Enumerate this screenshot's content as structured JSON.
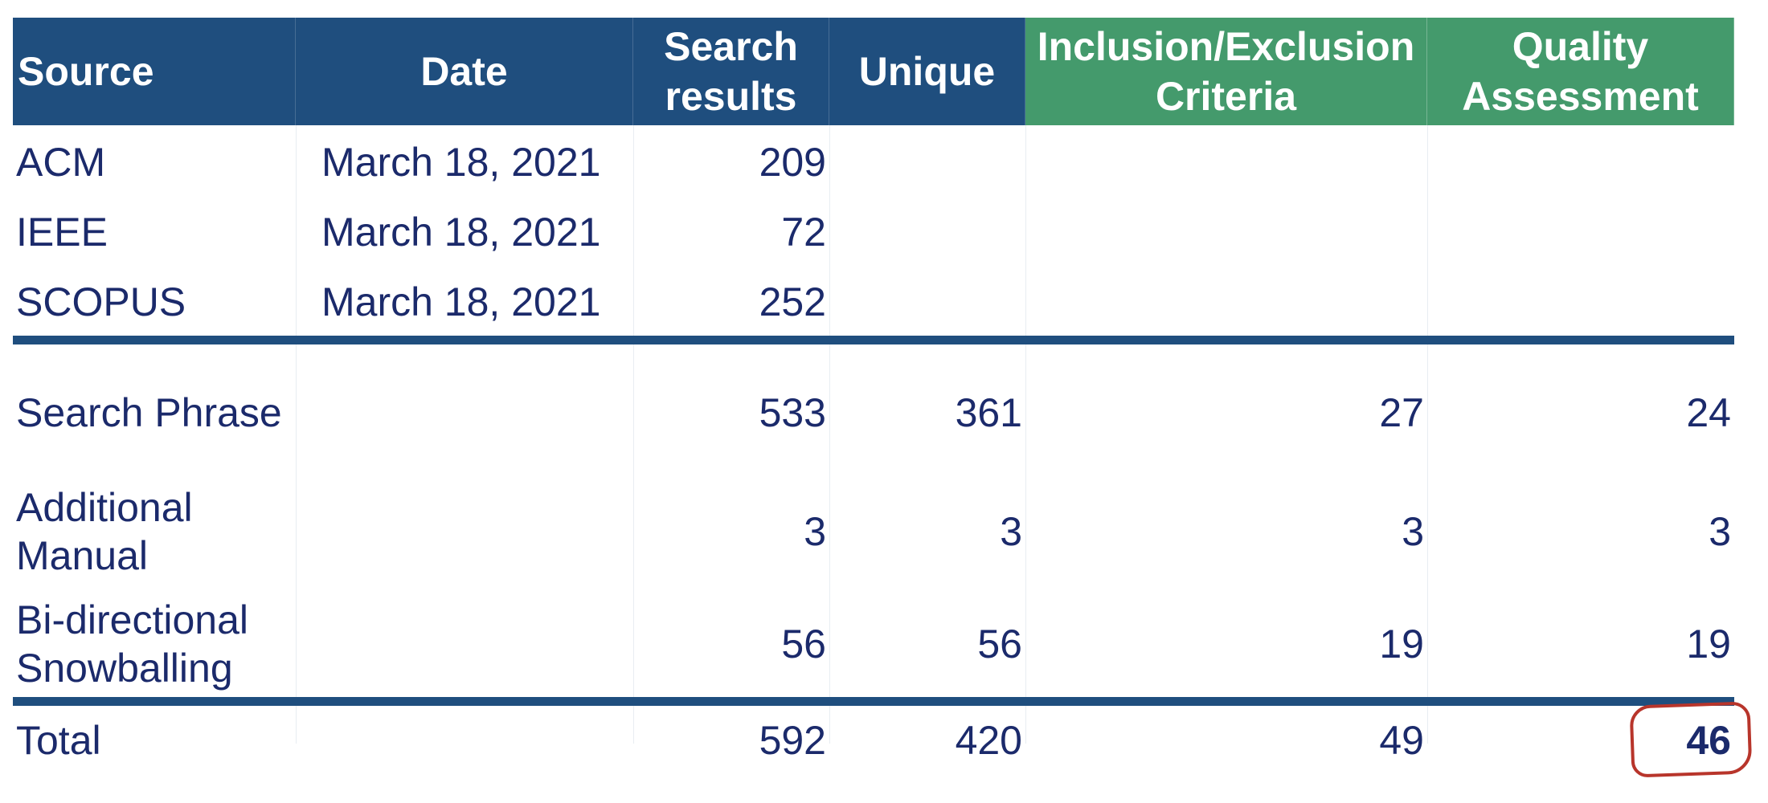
{
  "table": {
    "headers": {
      "source": "Source",
      "date": "Date",
      "search_results_line1": "Search",
      "search_results_line2": "results",
      "unique": "Unique",
      "inclusion_line1": "Inclusion/Exclusion",
      "inclusion_line2": "Criteria",
      "quality_line1": "Quality",
      "quality_line2": "Assessment"
    },
    "header_colors": {
      "blue": "#1f4e7e",
      "green": "#449a6c"
    },
    "source_rows": [
      {
        "source": "ACM",
        "date": "March 18, 2021",
        "search_results": "209"
      },
      {
        "source": "IEEE",
        "date": "March 18, 2021",
        "search_results": "72"
      },
      {
        "source": "SCOPUS",
        "date": "March 18, 2021",
        "search_results": "252"
      }
    ],
    "summary_rows": [
      {
        "source_line1": "Search Phrase",
        "source_line2": "",
        "search_results": "533",
        "unique": "361",
        "inclusion": "27",
        "quality": "24"
      },
      {
        "source_line1": "Additional",
        "source_line2": "Manual",
        "search_results": "3",
        "unique": "3",
        "inclusion": "3",
        "quality": "3"
      },
      {
        "source_line1": "Bi-directional",
        "source_line2": "Snowballing",
        "search_results": "56",
        "unique": "56",
        "inclusion": "19",
        "quality": "19"
      }
    ],
    "total_row": {
      "source": "Total",
      "search_results": "592",
      "unique": "420",
      "inclusion": "49",
      "quality": "46"
    },
    "text_color": "#1b2a6b",
    "highlight_color": "#b8352b"
  }
}
